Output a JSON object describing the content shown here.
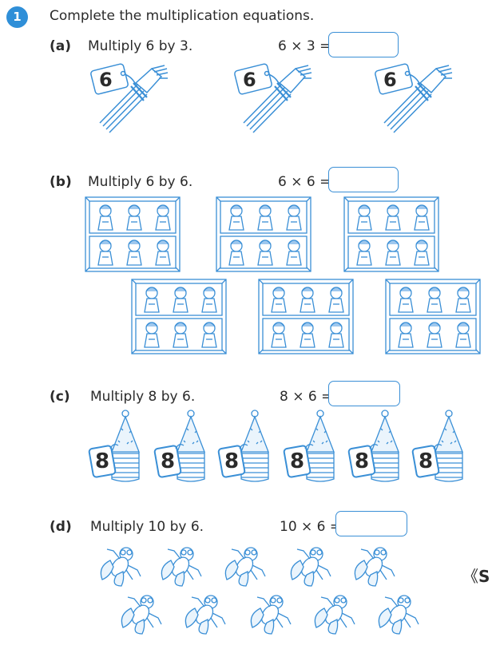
{
  "question": {
    "number": "1",
    "instruction": "Complete the multiplication equations."
  },
  "parts": [
    {
      "label": "(a)",
      "text": "Multiply 6 by 3.",
      "equation": "6 × 3 =",
      "tag": "6",
      "picture": "bundle-of-forks",
      "count": 3
    },
    {
      "label": "(b)",
      "text": "Multiply 6 by 6.",
      "equation": "6 × 6 =",
      "picture": "shelf-with-dolls",
      "count": 6
    },
    {
      "label": "(c)",
      "text": "Multiply 8 by 6.",
      "equation": "8 × 6 =",
      "tag": "8",
      "picture": "stack-of-party-hats",
      "count": 6
    },
    {
      "label": "(d)",
      "text": "Multiply 10 by 6.",
      "equation": "10 × 6 =",
      "picture": "fly",
      "count": 10
    }
  ],
  "side_nav": {
    "glyph": "《",
    "letter": "S"
  },
  "colors": {
    "accent": "#2f8fd8",
    "line": "#3a8fd6",
    "text": "#2b2b2b"
  }
}
